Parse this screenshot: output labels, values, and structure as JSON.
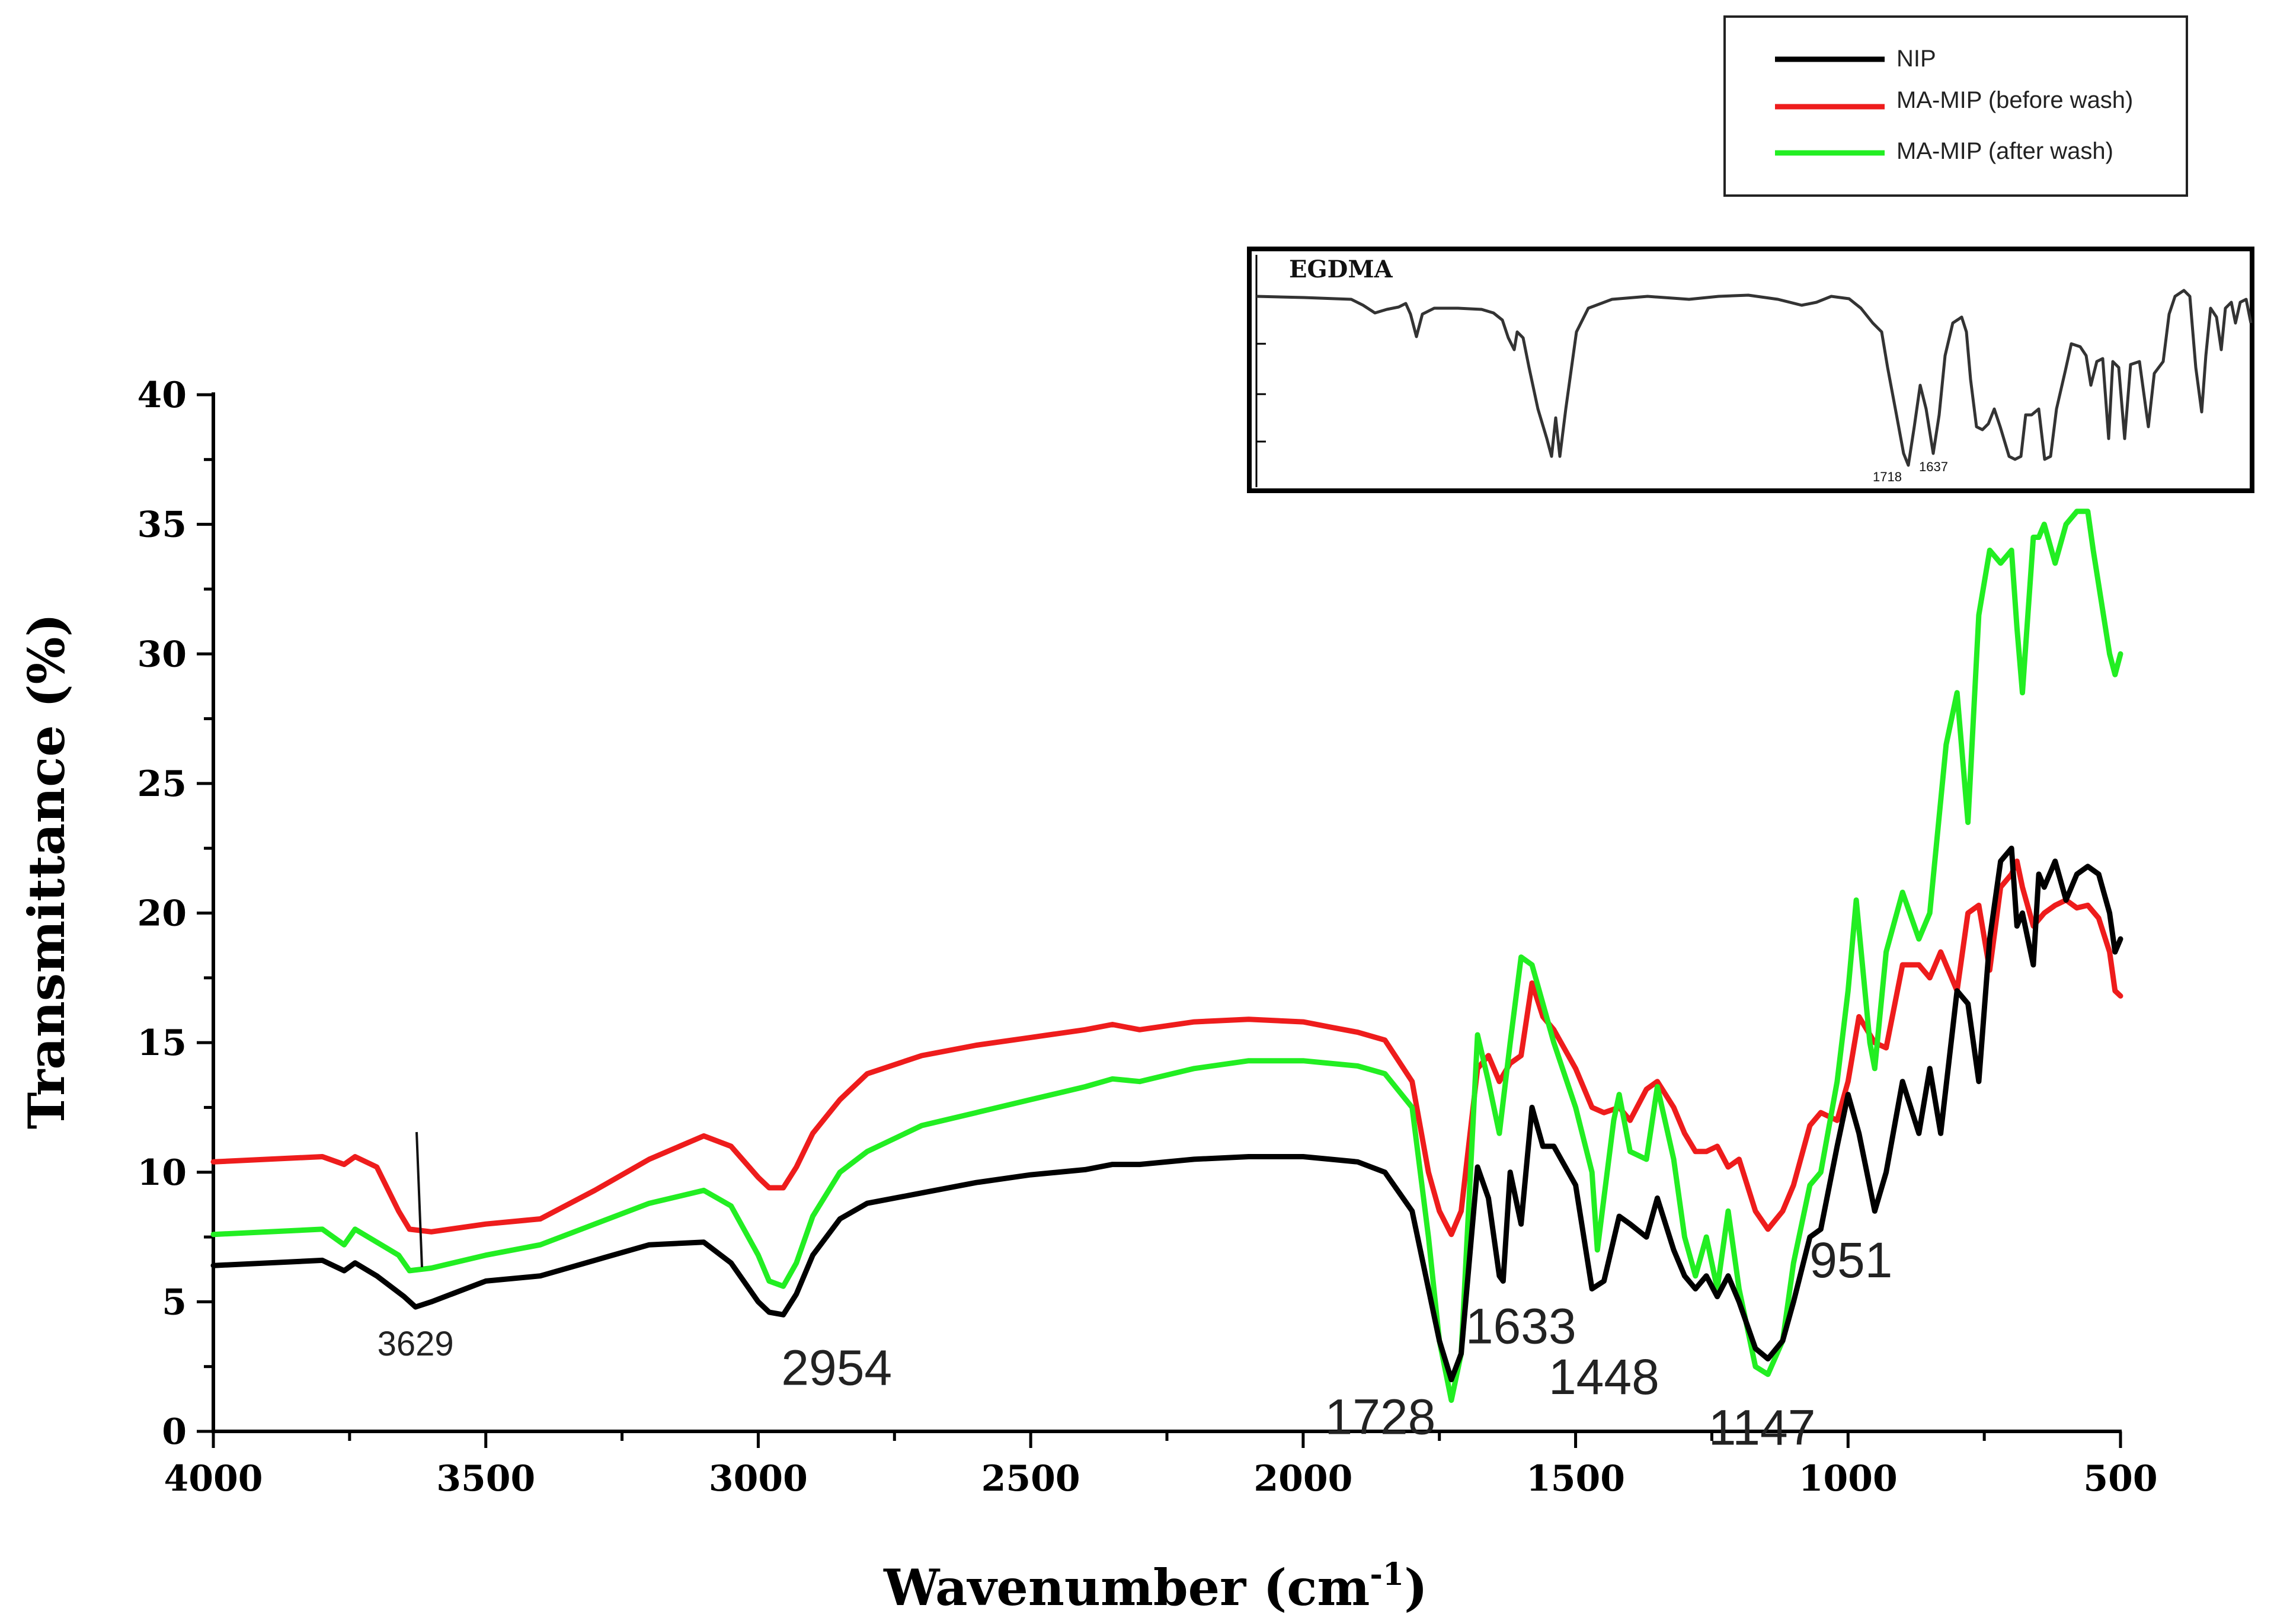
{
  "chart_data": {
    "type": "line",
    "title": "",
    "xlabel": "Wavenumber (cm",
    "xlabel_sup": "-1",
    "xlabel_close": ")",
    "ylabel": "Transmittance (%)",
    "xlim": [
      4000,
      500
    ],
    "ylim": [
      0,
      40
    ],
    "xticks": [
      4000,
      3500,
      3000,
      2500,
      2000,
      1500,
      1000,
      500
    ],
    "xtick_labels": [
      "4000",
      "3500",
      "3000",
      "2500",
      "2000",
      "1500",
      "1000",
      "500"
    ],
    "yticks": [
      0,
      5,
      10,
      15,
      20,
      25,
      30,
      35,
      40
    ],
    "ytick_labels": [
      "0",
      "5",
      "10",
      "15",
      "20",
      "25",
      "30",
      "35",
      "40"
    ],
    "legend_position": "top-right",
    "series": [
      {
        "name": "NIP",
        "color": "#000000",
        "x": [
          4000,
          3800,
          3760,
          3740,
          3700,
          3650,
          3629,
          3600,
          3500,
          3400,
          3300,
          3200,
          3100,
          3050,
          3000,
          2980,
          2954,
          2930,
          2900,
          2850,
          2800,
          2700,
          2600,
          2500,
          2400,
          2350,
          2300,
          2200,
          2100,
          2000,
          1950,
          1900,
          1850,
          1800,
          1770,
          1750,
          1728,
          1710,
          1680,
          1660,
          1640,
          1633,
          1620,
          1600,
          1580,
          1560,
          1540,
          1500,
          1470,
          1448,
          1420,
          1400,
          1370,
          1350,
          1320,
          1300,
          1280,
          1260,
          1240,
          1220,
          1200,
          1170,
          1147,
          1120,
          1100,
          1070,
          1050,
          1020,
          1000,
          980,
          951,
          930,
          900,
          870,
          850,
          830,
          800,
          780,
          760,
          740,
          720,
          700,
          690,
          680,
          660,
          650,
          640,
          620,
          600,
          580,
          560,
          540,
          520,
          510,
          500
        ],
        "y": [
          6.4,
          6.6,
          6.2,
          6.5,
          6.0,
          5.2,
          4.8,
          5.0,
          5.8,
          6.0,
          6.6,
          7.2,
          7.3,
          6.5,
          5.0,
          4.6,
          4.5,
          5.3,
          6.8,
          8.2,
          8.8,
          9.2,
          9.6,
          9.9,
          10.1,
          10.3,
          10.3,
          10.5,
          10.6,
          10.6,
          10.5,
          10.4,
          10.0,
          8.5,
          5.5,
          3.5,
          2.0,
          3.0,
          10.2,
          9.0,
          6.0,
          5.8,
          10.0,
          8.0,
          12.5,
          11.0,
          11.0,
          9.5,
          5.5,
          5.8,
          8.3,
          8.0,
          7.5,
          9.0,
          7.0,
          6.0,
          5.5,
          6.0,
          5.2,
          6.0,
          5.0,
          3.2,
          2.8,
          3.5,
          5.0,
          7.5,
          7.8,
          11.0,
          13.0,
          11.5,
          8.5,
          10.0,
          13.5,
          11.5,
          14.0,
          11.5,
          17.0,
          16.5,
          13.5,
          19.0,
          22.0,
          22.5,
          19.5,
          20.0,
          18.0,
          21.5,
          21.0,
          22.0,
          20.5,
          21.5,
          21.8,
          21.5,
          20.0,
          18.5,
          19.0
        ]
      },
      {
        "name": "MA-MIP (before wash)",
        "color": "#ee1c1c",
        "x": [
          4000,
          3800,
          3760,
          3740,
          3700,
          3660,
          3640,
          3600,
          3500,
          3400,
          3300,
          3200,
          3100,
          3050,
          3000,
          2980,
          2954,
          2930,
          2900,
          2850,
          2800,
          2700,
          2600,
          2500,
          2400,
          2350,
          2300,
          2200,
          2100,
          2000,
          1950,
          1900,
          1850,
          1800,
          1770,
          1750,
          1728,
          1710,
          1680,
          1660,
          1640,
          1620,
          1600,
          1580,
          1560,
          1540,
          1500,
          1470,
          1448,
          1420,
          1400,
          1370,
          1350,
          1320,
          1300,
          1280,
          1260,
          1240,
          1220,
          1200,
          1170,
          1147,
          1120,
          1100,
          1070,
          1050,
          1020,
          1000,
          980,
          951,
          930,
          900,
          870,
          850,
          830,
          800,
          780,
          760,
          740,
          720,
          700,
          690,
          680,
          660,
          640,
          620,
          600,
          580,
          560,
          540,
          520,
          510,
          500
        ],
        "y": [
          10.4,
          10.6,
          10.3,
          10.6,
          10.2,
          8.5,
          7.8,
          7.7,
          8.0,
          8.2,
          9.3,
          10.5,
          11.4,
          11.0,
          9.8,
          9.4,
          9.4,
          10.2,
          11.5,
          12.8,
          13.8,
          14.5,
          14.9,
          15.2,
          15.5,
          15.7,
          15.5,
          15.8,
          15.9,
          15.8,
          15.6,
          15.4,
          15.1,
          13.5,
          10.0,
          8.5,
          7.6,
          8.5,
          14.0,
          14.5,
          13.5,
          14.2,
          14.5,
          17.3,
          16.0,
          15.5,
          14.0,
          12.5,
          12.3,
          12.5,
          12.0,
          13.2,
          13.5,
          12.5,
          11.5,
          10.8,
          10.8,
          11.0,
          10.2,
          10.5,
          8.5,
          7.8,
          8.5,
          9.5,
          11.8,
          12.3,
          12.0,
          13.5,
          16.0,
          15.0,
          14.8,
          18.0,
          18.0,
          17.5,
          18.5,
          17.0,
          20.0,
          20.3,
          17.8,
          21.0,
          21.5,
          22.0,
          21.0,
          19.5,
          20.0,
          20.3,
          20.5,
          20.2,
          20.3,
          19.8,
          18.5,
          17.0,
          16.8
        ]
      },
      {
        "name": "MA-MIP (after wash)",
        "color": "#22ee22",
        "x": [
          4000,
          3800,
          3760,
          3740,
          3700,
          3660,
          3640,
          3600,
          3500,
          3400,
          3300,
          3200,
          3100,
          3050,
          3000,
          2980,
          2954,
          2930,
          2900,
          2850,
          2800,
          2700,
          2600,
          2500,
          2400,
          2350,
          2300,
          2200,
          2100,
          2000,
          1950,
          1900,
          1850,
          1800,
          1770,
          1750,
          1728,
          1710,
          1680,
          1660,
          1640,
          1620,
          1600,
          1580,
          1560,
          1540,
          1500,
          1470,
          1460,
          1430,
          1420,
          1400,
          1370,
          1350,
          1320,
          1300,
          1280,
          1260,
          1240,
          1220,
          1200,
          1170,
          1147,
          1120,
          1100,
          1070,
          1050,
          1020,
          1000,
          985,
          960,
          951,
          930,
          900,
          870,
          850,
          820,
          800,
          780,
          760,
          740,
          720,
          700,
          690,
          680,
          660,
          650,
          640,
          620,
          600,
          580,
          560,
          550,
          520,
          510,
          500
        ],
        "y": [
          7.6,
          7.8,
          7.2,
          7.8,
          7.3,
          6.8,
          6.2,
          6.3,
          6.8,
          7.2,
          8.0,
          8.8,
          9.3,
          8.7,
          6.8,
          5.8,
          5.6,
          6.5,
          8.3,
          10.0,
          10.8,
          11.8,
          12.3,
          12.8,
          13.3,
          13.6,
          13.5,
          14.0,
          14.3,
          14.3,
          14.2,
          14.1,
          13.8,
          12.5,
          7.5,
          3.5,
          1.2,
          3.0,
          15.3,
          13.5,
          11.5,
          15.0,
          18.3,
          18.0,
          16.5,
          15.0,
          12.5,
          10.0,
          7.0,
          12.0,
          13.0,
          10.8,
          10.5,
          13.3,
          10.5,
          7.5,
          6.0,
          7.5,
          5.5,
          8.5,
          5.5,
          2.5,
          2.2,
          3.5,
          6.5,
          9.5,
          10.0,
          13.5,
          17.0,
          20.5,
          15.0,
          14.0,
          18.5,
          20.8,
          19.0,
          20.0,
          26.5,
          28.5,
          23.5,
          31.5,
          34.0,
          33.5,
          34.0,
          31.0,
          28.5,
          34.5,
          34.5,
          35.0,
          33.5,
          35.0,
          35.5,
          35.5,
          34.0,
          30.0,
          29.2,
          30.0
        ]
      }
    ],
    "annotations": [
      {
        "text": "3629",
        "x": 3629,
        "y": 4.3
      },
      {
        "text": "2954",
        "x": 2954,
        "y": 3.4
      },
      {
        "text": "1728",
        "x": 1728,
        "y": 1.5
      },
      {
        "text": "1633",
        "x": 1633,
        "y": 5.0
      },
      {
        "text": "1448",
        "x": 1448,
        "y": 3.5
      },
      {
        "text": "1147",
        "x": 1147,
        "y": 1.2
      },
      {
        "text": "951",
        "x": 951,
        "y": 7.2
      }
    ],
    "inset": {
      "title": "EGDMA",
      "peak_labels": [
        "1718",
        "1637"
      ]
    }
  }
}
